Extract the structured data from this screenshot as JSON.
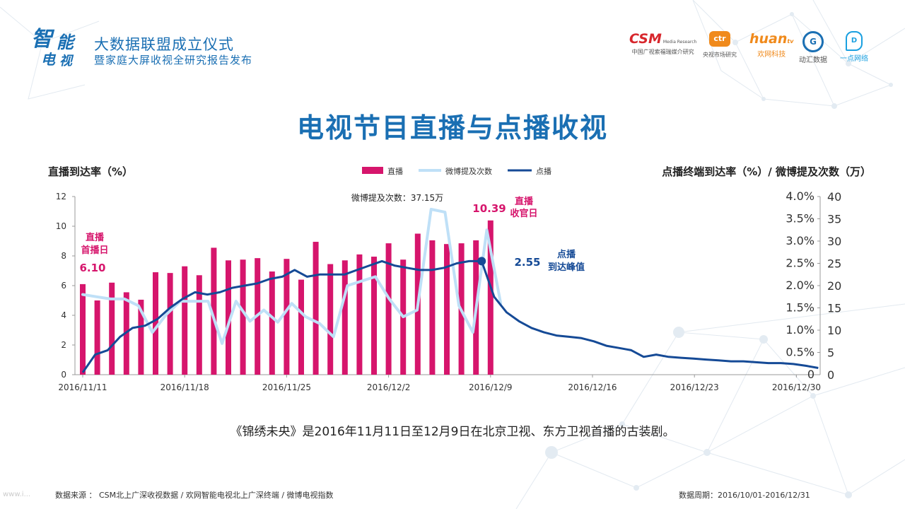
{
  "header": {
    "logo_chars": [
      "智",
      "能",
      "电",
      "视"
    ],
    "event_title": "大数据联盟成立仪式",
    "event_subtitle": "暨家庭大屏收视全研究报告发布",
    "partners": [
      {
        "name": "CSM",
        "tag": "Media Research",
        "sub": "中国广视索福瑞媒介研究",
        "color": "#d7262c"
      },
      {
        "name": "ctr",
        "tag": "",
        "sub": "央视市场研究",
        "color": "#f08a1c"
      },
      {
        "name": "huan",
        "tag": "tv",
        "sub": "欢网科技",
        "color": "#f08a1c"
      },
      {
        "name": "G",
        "tag": "",
        "sub": "动汇数据",
        "color": "#1a6fb3"
      },
      {
        "name": "D",
        "tag": "",
        "sub": "一点网络",
        "color": "#1aa0e0"
      }
    ]
  },
  "page_title": "电视节目直播与点播收视",
  "description": "《锦绣未央》是2016年11月11日至12月9日在北京卫视、东方卫视首播的古装剧。",
  "footer": {
    "source": "数据来源 ： CSM北上广深收视数据 / 欢网智能电视北上广深终端 / 微博电视指数",
    "period": "数据周期：2016/10/01-2016/12/31",
    "watermark": "www.i..."
  },
  "chart_data": {
    "type": "bar",
    "ylabel_left": "直播到达率（%）",
    "ylabel_right": "点播终端到达率（%）/ 微博提及次数（万）",
    "legend": {
      "placement": "top-center",
      "entries": [
        "直播",
        "微博提及次数",
        "点播"
      ]
    },
    "x_ticks": [
      "2016/11/11",
      "2016/11/18",
      "2016/11/25",
      "2016/12/2",
      "2016/12/9",
      "2016/12/16",
      "2016/12/23",
      "2016/12/30"
    ],
    "left_axis": {
      "min": 0,
      "max": 12,
      "step": 2
    },
    "right_axis_pct": {
      "min": 0,
      "max": 4.0,
      "step": 0.5,
      "labels": [
        "0",
        "0.5%",
        "1.0%",
        "1.5%",
        "2.0%",
        "2.5%",
        "3.0%",
        "3.5%",
        "4.0%"
      ]
    },
    "right_axis_count": {
      "min": 0,
      "max": 40,
      "step": 5
    },
    "colors": {
      "live": "#d6156c",
      "weibo": "#bfe0f7",
      "vod": "#154a96"
    },
    "live_series": {
      "name": "直播",
      "values": [
        6.1,
        5.0,
        6.2,
        5.55,
        5.05,
        6.9,
        6.85,
        7.3,
        6.7,
        8.55,
        7.7,
        7.75,
        7.85,
        6.95,
        7.8,
        6.4,
        8.95,
        7.45,
        7.7,
        8.1,
        7.95,
        8.85,
        7.75,
        9.5,
        9.05,
        8.8,
        8.85,
        9.05,
        10.39
      ]
    },
    "weibo_series": {
      "name": "微博提及次数",
      "values": [
        18,
        17.5,
        17,
        17,
        15.5,
        9.5,
        13.5,
        16.5,
        16.5,
        16.5,
        7,
        16.5,
        12,
        14.5,
        11.8,
        16,
        13,
        11.5,
        8.5,
        20,
        21,
        22,
        17,
        13,
        14.5,
        37.15,
        36.5,
        15.5,
        9.5,
        32.5,
        16
      ]
    },
    "vod_series": {
      "name": "点播",
      "values": [
        0.05,
        0.45,
        0.55,
        0.85,
        1.05,
        1.1,
        1.25,
        1.5,
        1.7,
        1.85,
        1.8,
        1.85,
        1.95,
        2.0,
        2.05,
        2.15,
        2.2,
        2.35,
        2.2,
        2.25,
        2.25,
        2.25,
        2.35,
        2.45,
        2.55,
        2.45,
        2.4,
        2.35,
        2.35,
        2.4,
        2.5,
        2.55,
        2.55,
        1.75,
        1.4,
        1.2,
        1.05,
        0.95,
        0.88,
        0.85,
        0.82,
        0.75,
        0.65,
        0.6,
        0.55,
        0.4,
        0.45,
        0.4,
        0.38,
        0.36,
        0.34,
        0.32,
        0.3,
        0.3,
        0.28,
        0.26,
        0.26,
        0.24,
        0.2,
        0.15
      ]
    },
    "annotations": {
      "first_day_label": "直播\n首播日",
      "first_day_value": "6.10",
      "last_day_label": "直播\n收官日",
      "last_day_value": "10.39",
      "weibo_peak": "微博提及次数：37.15万",
      "vod_peak_value": "2.55",
      "vod_peak_label": "点播\n到达峰值"
    }
  }
}
